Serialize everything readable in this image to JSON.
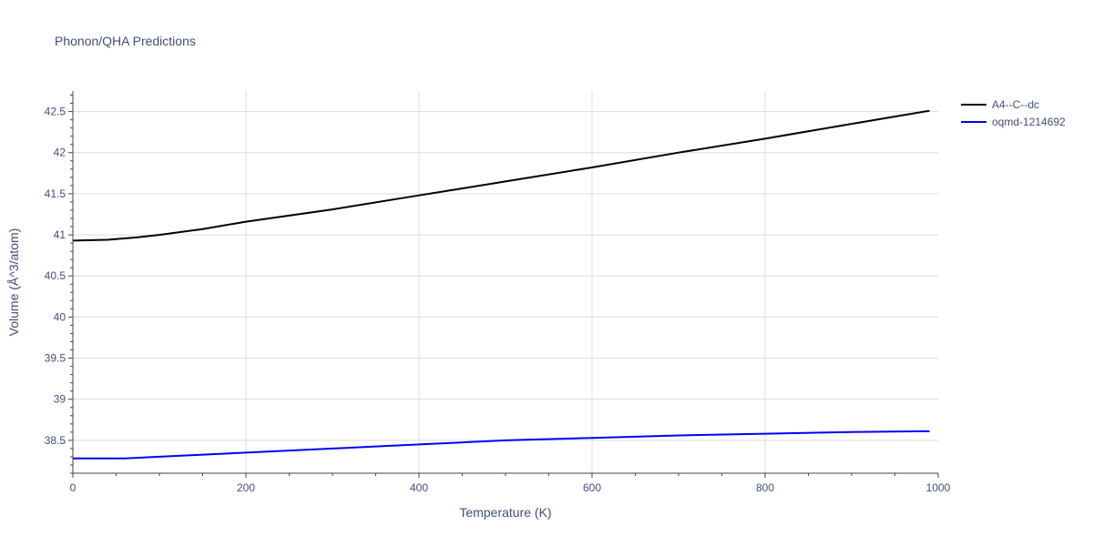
{
  "chart_data": {
    "type": "line",
    "title": "Phonon/QHA Predictions",
    "xlabel": "Temperature (K)",
    "ylabel": "Volume (Å^3/atom)",
    "xlim": [
      0,
      1000
    ],
    "ylim": [
      38.1,
      42.75
    ],
    "xticks": [
      0,
      200,
      400,
      600,
      800,
      1000
    ],
    "xtick_labels": [
      "0",
      "200",
      "400",
      "600",
      "800",
      "1000"
    ],
    "yticks": [
      38.5,
      39,
      39.5,
      40,
      40.5,
      41,
      41.5,
      42,
      42.5
    ],
    "ytick_labels": [
      "38.5",
      "39",
      "39.5",
      "40",
      "40.5",
      "41",
      "41.5",
      "42",
      "42.5"
    ],
    "grid": true,
    "legend_position": "top-right-outside",
    "series": [
      {
        "name": "A4--C--dc",
        "color": "#000000",
        "x": [
          0,
          40,
          75,
          100,
          150,
          200,
          300,
          400,
          500,
          600,
          700,
          800,
          900,
          990
        ],
        "y": [
          40.93,
          40.94,
          40.97,
          41.0,
          41.07,
          41.16,
          41.31,
          41.48,
          41.65,
          41.82,
          42.0,
          42.17,
          42.35,
          42.51
        ]
      },
      {
        "name": "oqmd-1214692",
        "color": "#0000ff",
        "x": [
          0,
          60,
          100,
          200,
          300,
          400,
          500,
          600,
          700,
          800,
          900,
          990
        ],
        "y": [
          38.28,
          38.28,
          38.3,
          38.35,
          38.4,
          38.45,
          38.5,
          38.53,
          38.56,
          38.58,
          38.6,
          38.61
        ]
      }
    ]
  }
}
